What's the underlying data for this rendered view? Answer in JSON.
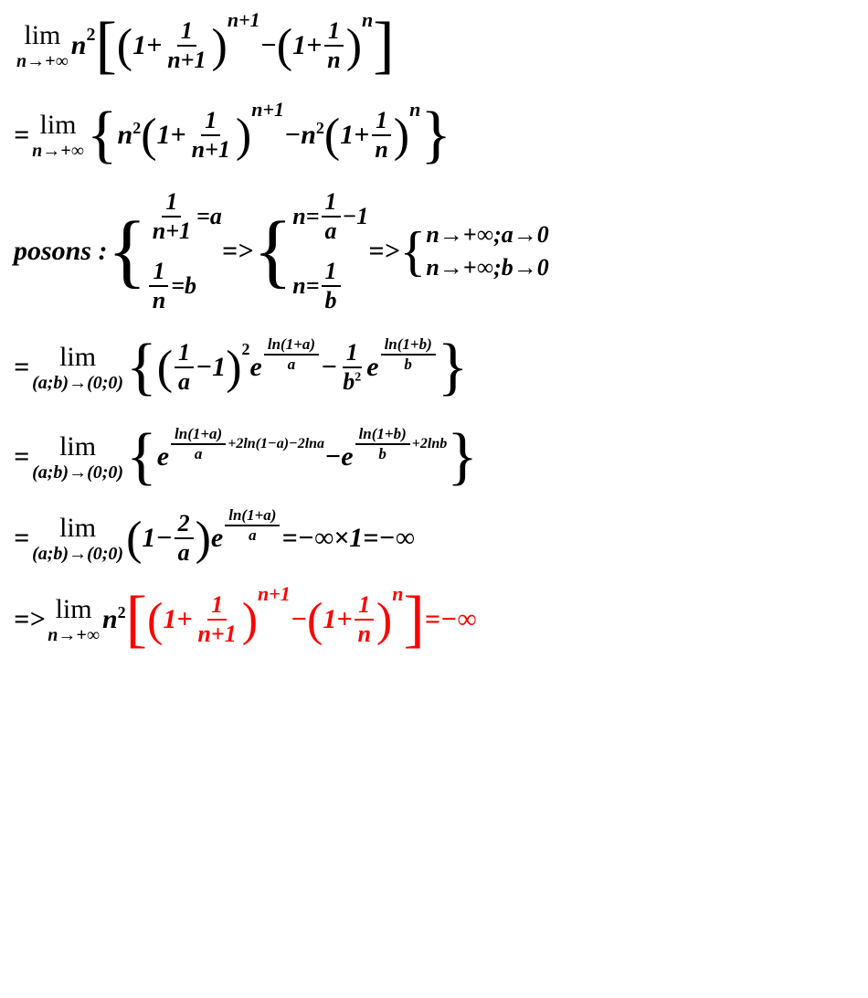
{
  "colors": {
    "text": "#000000",
    "highlight": "#ff0000",
    "background": "#ffffff"
  },
  "typography": {
    "font_family": "Times New Roman",
    "base_fontsize": 30,
    "sub_fontsize": 20,
    "exp_fontsize": 16,
    "font_style": "italic",
    "font_weight": "bold"
  },
  "lines": {
    "l1": {
      "lim_top": "lim",
      "lim_bot": "n→+∞",
      "n2": "n",
      "exp2": "2",
      "lbracket": "[",
      "lp1": "(",
      "one1": "1+",
      "f1_num": "1",
      "f1_den": "n+1",
      "rp1": ")",
      "exp_n1": "n+1",
      "minus": "−",
      "lp2": "(",
      "one2": "1+",
      "f2_num": "1",
      "f2_den": "n",
      "rp2": ")",
      "exp_n": "n",
      "rbracket": "]"
    },
    "l2": {
      "eq": "=",
      "lim_top": "lim",
      "lim_bot": "n→+∞",
      "lbrace": "{",
      "n2a": "n",
      "exp2a": "2",
      "lp1": "(",
      "one1": "1+",
      "f1_num": "1",
      "f1_den": "n+1",
      "rp1": ")",
      "exp_n1": "n+1",
      "minus": "−",
      "n2b": "n",
      "exp2b": "2",
      "lp2": "(",
      "one2": "1+",
      "f2_num": "1",
      "f2_den": "n",
      "rp2": ")",
      "exp_n": "n",
      "rbrace": "}"
    },
    "l3": {
      "posons": "posons :",
      "r1_f_num": "1",
      "r1_f_den": "n+1",
      "r1_eq": "=a",
      "r2_f_num": "1",
      "r2_f_den": "n",
      "r2_eq": "=b",
      "arrow1": "=>",
      "s2r1_n": "n=",
      "s2r1_f_num": "1",
      "s2r1_f_den": "a",
      "s2r1_m1": "−1",
      "s2r2_n": "n=",
      "s2r2_f_num": "1",
      "s2r2_f_den": "b",
      "arrow2": "=>",
      "s3r1": "n→+∞;a→0",
      "s3r2": "n→+∞;b→0"
    },
    "l4": {
      "eq": "=",
      "lim_top": "lim",
      "lim_bot": "(a;b)→(0;0)",
      "lbrace": "{",
      "lp1": "(",
      "f1_num": "1",
      "f1_den": "a",
      "m1": "−1",
      "rp1": ")",
      "exp2": "2",
      "e1": "e",
      "exp1_f_num": "ln(1+a)",
      "exp1_f_den": "a",
      "minus": "−",
      "f2_num": "1",
      "f2_den_b": "b",
      "f2_den_2": "2",
      "e2": "e",
      "exp2_f_num": "ln(1+b)",
      "exp2_f_den": "b",
      "rbrace": "}"
    },
    "l5": {
      "eq": "=",
      "lim_top": "lim",
      "lim_bot": "(a;b)→(0;0)",
      "lbrace": "{",
      "e1": "e",
      "exp1_f_num": "ln(1+a)",
      "exp1_f_den": "a",
      "exp1_rest": "+2ln(1−a)−2lna",
      "minus": "−",
      "e2": "e",
      "exp2_f_num": "ln(1+b)",
      "exp2_f_den": "b",
      "exp2_rest": "+2lnb",
      "rbrace": "}"
    },
    "l6": {
      "eq": "=",
      "lim_top": "lim",
      "lim_bot": "(a;b)→(0;0)",
      "lp": "(",
      "one_minus": "1−",
      "f_num": "2",
      "f_den": "a",
      "rp": ")",
      "e": "e",
      "exp_f_num": "ln(1+a)",
      "exp_f_den": "a",
      "result": "=−∞×1=−∞"
    },
    "l7": {
      "arrow": "=>",
      "lim_top": "lim",
      "lim_bot": "n→+∞",
      "n2": "n",
      "exp2": "2",
      "lbracket": "[",
      "lp1": "(",
      "one1": "1+",
      "f1_num": "1",
      "f1_den": "n+1",
      "rp1": ")",
      "exp_n1": "n+1",
      "minus": "−",
      "lp2": "(",
      "one2": "1+",
      "f2_num": "1",
      "f2_den": "n",
      "rp2": ")",
      "exp_n": "n",
      "rbracket": "]",
      "result": "=−∞"
    }
  }
}
